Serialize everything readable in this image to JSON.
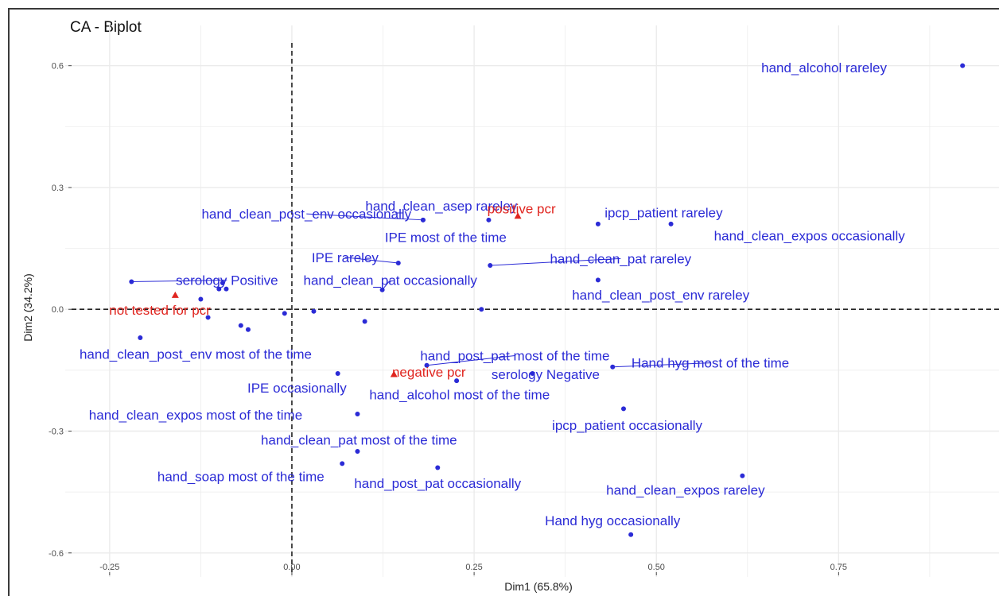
{
  "chart_data": {
    "type": "scatter",
    "title": "CA - Biplot",
    "xlabel": "Dim1 (65.8%)",
    "ylabel": "Dim2 (34.2%)",
    "xlim": [
      -0.3,
      0.97
    ],
    "ylim": [
      -0.62,
      0.66
    ],
    "x_ticks": [
      -0.25,
      0.0,
      0.25,
      0.5,
      0.75
    ],
    "x_tick_labels": [
      "-0.25",
      "0.00",
      "0.25",
      "0.50",
      "0.75"
    ],
    "y_ticks": [
      0.6,
      0.3,
      0.0,
      -0.3,
      -0.6
    ],
    "y_tick_labels": [
      "0.6",
      "0.3",
      "0.0",
      "-0.3",
      "-0.6"
    ],
    "grid": true,
    "reference_lines": {
      "x": 0,
      "y": 0,
      "style": "dashed"
    },
    "colors": {
      "column": "#2b2bd6",
      "row": "#e0251f",
      "grid": "#ebebeb",
      "zero_line": "#222222"
    },
    "series": [
      {
        "name": "column",
        "marker": "circle",
        "points": [
          {
            "label": "hand_alcohol rareley",
            "x": 0.92,
            "y": 0.6,
            "label_x": 0.73,
            "label_y": 0.595
          },
          {
            "label": "hand_clean_post_env occasionally",
            "x": 0.18,
            "y": 0.22,
            "label_x": 0.02,
            "label_y": 0.235,
            "leader": true
          },
          {
            "label": "hand_clean_asep rareley",
            "x": 0.27,
            "y": 0.22,
            "label_x": 0.205,
            "label_y": 0.255
          },
          {
            "label": "IPE most of the time",
            "x": 0.18,
            "y": 0.22,
            "label_x": 0.211,
            "label_y": 0.178
          },
          {
            "label": "ipcp_patient rareley",
            "x": 0.42,
            "y": 0.21,
            "label_x": 0.51,
            "label_y": 0.238
          },
          {
            "label": "hand_clean_expos occasionally",
            "x": 0.52,
            "y": 0.21,
            "label_x": 0.71,
            "label_y": 0.181
          },
          {
            "label": "IPE rareley",
            "x": 0.146,
            "y": 0.114,
            "label_x": 0.073,
            "label_y": 0.128,
            "leader": true
          },
          {
            "label": "hand_clean_pat rareley",
            "x": 0.272,
            "y": 0.108,
            "label_x": 0.451,
            "label_y": 0.125,
            "leader": true
          },
          {
            "label": "serology Positive",
            "x": -0.22,
            "y": 0.068,
            "label_x": -0.089,
            "label_y": 0.072,
            "leader": true
          },
          {
            "label": "hand_clean_pat occasionally",
            "x": 0.124,
            "y": 0.048,
            "label_x": 0.135,
            "label_y": 0.072,
            "leader": true
          },
          {
            "label": "hand_clean_post_env rareley",
            "x": 0.42,
            "y": 0.072,
            "label_x": 0.506,
            "label_y": 0.036
          },
          {
            "label": "hand_clean_post_env most of the time",
            "x": -0.208,
            "y": -0.07,
            "label_x": -0.132,
            "label_y": -0.11
          },
          {
            "label": "hand_post_pat most of the time",
            "x": 0.185,
            "y": -0.138,
            "label_x": 0.306,
            "label_y": -0.114,
            "leader": true
          },
          {
            "label": "Hand hyg most of the time",
            "x": 0.44,
            "y": -0.142,
            "label_x": 0.574,
            "label_y": -0.132,
            "leader": true
          },
          {
            "label": "serology Negative",
            "x": 0.33,
            "y": -0.158,
            "label_x": 0.348,
            "label_y": -0.16
          },
          {
            "label": "IPE occasionally",
            "x": 0.063,
            "y": -0.158,
            "label_x": 0.007,
            "label_y": -0.193
          },
          {
            "label": "hand_alcohol most of the time",
            "x": 0.226,
            "y": -0.176,
            "label_x": 0.23,
            "label_y": -0.21
          },
          {
            "label": "hand_clean_expos most of the time",
            "x": 0.09,
            "y": -0.258,
            "label_x": -0.132,
            "label_y": -0.26
          },
          {
            "label": "ipcp_patient occasionally",
            "x": 0.455,
            "y": -0.245,
            "label_x": 0.46,
            "label_y": -0.285
          },
          {
            "label": "hand_clean_pat most of the time",
            "x": 0.09,
            "y": -0.35,
            "label_x": 0.092,
            "label_y": -0.322
          },
          {
            "label": "hand_soap most of the time",
            "x": 0.069,
            "y": -0.38,
            "label_x": -0.07,
            "label_y": -0.412
          },
          {
            "label": "hand_post_pat occasionally",
            "x": 0.2,
            "y": -0.39,
            "label_x": 0.2,
            "label_y": -0.428
          },
          {
            "label": "hand_clean_expos rareley",
            "x": 0.618,
            "y": -0.41,
            "label_x": 0.54,
            "label_y": -0.445
          },
          {
            "label": "Hand hyg occasionally",
            "x": 0.465,
            "y": -0.555,
            "label_x": 0.44,
            "label_y": -0.52
          }
        ],
        "unlabeled_points": [
          {
            "x": -0.125,
            "y": 0.025
          },
          {
            "x": -0.115,
            "y": -0.02
          },
          {
            "x": -0.1,
            "y": 0.05
          },
          {
            "x": -0.095,
            "y": 0.065
          },
          {
            "x": -0.09,
            "y": 0.05
          },
          {
            "x": -0.07,
            "y": -0.04
          },
          {
            "x": -0.06,
            "y": -0.05
          },
          {
            "x": -0.01,
            "y": -0.01
          },
          {
            "x": 0.03,
            "y": -0.005
          },
          {
            "x": 0.1,
            "y": -0.03
          },
          {
            "x": 0.26,
            "y": 0.0
          }
        ]
      },
      {
        "name": "row",
        "marker": "triangle",
        "points": [
          {
            "label": "positive pcr",
            "x": 0.31,
            "y": 0.23,
            "label_x": 0.315,
            "label_y": 0.248
          },
          {
            "label": "not tested for pcr",
            "x": -0.16,
            "y": 0.035,
            "label_x": -0.181,
            "label_y": -0.002
          },
          {
            "label": "negative pcr",
            "x": 0.14,
            "y": -0.16,
            "label_x": 0.188,
            "label_y": -0.154
          }
        ]
      }
    ]
  }
}
